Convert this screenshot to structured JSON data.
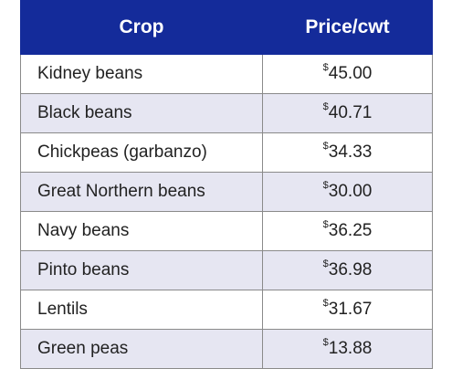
{
  "table": {
    "headers": {
      "crop": "Crop",
      "price": "Price/cwt"
    },
    "currency_symbol": "$",
    "rows": [
      {
        "crop": "Kidney beans",
        "price": "45.00"
      },
      {
        "crop": "Black beans",
        "price": "40.71"
      },
      {
        "crop": "Chickpeas (garbanzo)",
        "price": "34.33"
      },
      {
        "crop": "Great Northern beans",
        "price": "30.00"
      },
      {
        "crop": "Navy beans",
        "price": "36.25"
      },
      {
        "crop": "Pinto beans",
        "price": "36.98"
      },
      {
        "crop": "Lentils",
        "price": "31.67"
      },
      {
        "crop": "Green peas",
        "price": "13.88"
      }
    ]
  },
  "colors": {
    "header_bg": "#142b9a",
    "header_text": "#ffffff",
    "alt_row_bg": "#e6e6f2",
    "border": "#8a8a8a"
  }
}
